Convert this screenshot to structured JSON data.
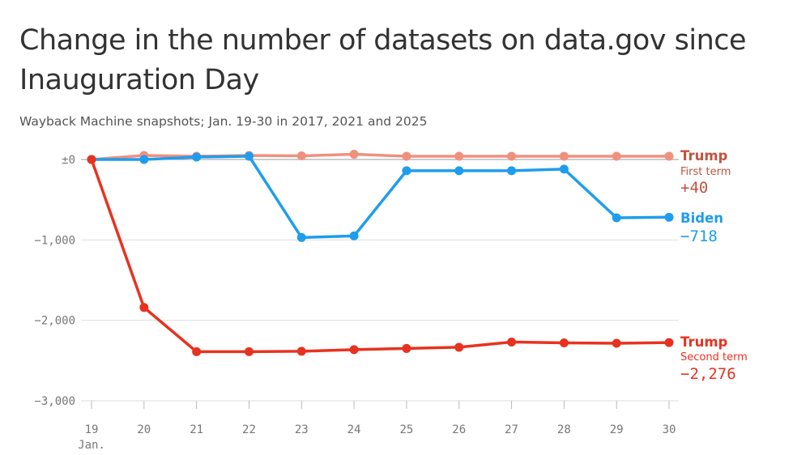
{
  "chart_data": {
    "type": "line",
    "title": "Change in the number of datasets on data.gov since Inauguration Day",
    "subtitle": "Wayback Machine snapshots; Jan. 19-30 in 2017, 2021 and 2025",
    "x": [
      19,
      20,
      21,
      22,
      23,
      24,
      25,
      26,
      27,
      28,
      29,
      30
    ],
    "x_tick_labels": [
      "19",
      "20",
      "21",
      "22",
      "23",
      "24",
      "25",
      "26",
      "27",
      "28",
      "29",
      "30"
    ],
    "x_sublabel": "Jan.",
    "ylim": [
      -3000,
      0
    ],
    "y_ticks": [
      0,
      -1000,
      -2000,
      -3000
    ],
    "y_tick_labels": [
      "±0",
      "−1,000",
      "−2,000",
      "−3,000"
    ],
    "grid": true,
    "series": [
      {
        "key": "trump1",
        "name": "Trump",
        "sublabel": "First term",
        "end_label": "+40",
        "color": "#f0907f",
        "label_color": "#c0533f",
        "values": [
          0,
          50,
          40,
          50,
          45,
          65,
          40,
          40,
          40,
          40,
          40,
          40
        ]
      },
      {
        "key": "biden",
        "name": "Biden",
        "sublabel": "",
        "end_label": "−718",
        "color": "#1f9ded",
        "label_color": "#1f9ded",
        "values": [
          0,
          0,
          30,
          40,
          -970,
          -950,
          -140,
          -140,
          -140,
          -120,
          -725,
          -718
        ]
      },
      {
        "key": "trump2",
        "name": "Trump",
        "sublabel": "Second term",
        "end_label": "−2,276",
        "color": "#e8321f",
        "label_color": "#e8321f",
        "values": [
          0,
          -1840,
          -2390,
          -2390,
          -2385,
          -2365,
          -2350,
          -2335,
          -2270,
          -2280,
          -2285,
          -2276
        ]
      }
    ]
  }
}
